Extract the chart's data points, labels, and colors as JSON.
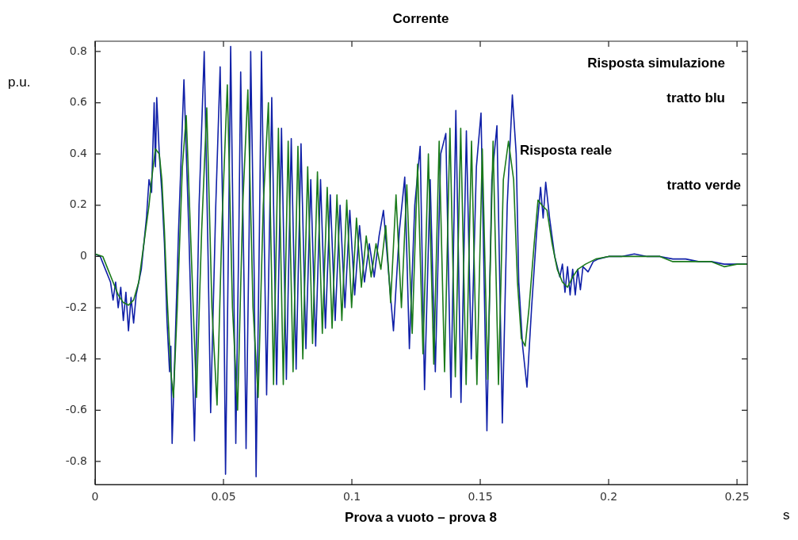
{
  "chart_data": {
    "type": "line",
    "title": "Corrente",
    "xlabel": "Prova a vuoto – prova 8",
    "ylabel": "p.u.",
    "annotations": [
      "Risposta simulazione",
      "tratto blu",
      "Risposta reale",
      "tratto verde",
      "s"
    ],
    "xlim": [
      0,
      0.254
    ],
    "xticks": [
      0,
      0.05,
      0.1,
      0.15,
      0.2,
      0.25
    ],
    "ylim": [
      -0.89,
      0.84
    ],
    "yticks": [
      -0.8,
      -0.6,
      -0.4,
      -0.2,
      0,
      0.2,
      0.4,
      0.6,
      0.8
    ],
    "grid": false,
    "legend": false,
    "marker": "none",
    "line_style": "solid",
    "series": [
      {
        "color": "#1020a8",
        "x": [
          0,
          0.002,
          0.004,
          0.006,
          0.007,
          0.008,
          0.009,
          0.01,
          0.011,
          0.012,
          0.013,
          0.014,
          0.015,
          0.016,
          0.018,
          0.02,
          0.021,
          0.022,
          0.023,
          0.0235,
          0.024,
          0.025,
          0.026,
          0.027,
          0.028,
          0.029,
          0.0295,
          0.03,
          0.031,
          0.0325,
          0.0346,
          0.0365,
          0.0387,
          0.0405,
          0.0425,
          0.044,
          0.045,
          0.047,
          0.0487,
          0.05,
          0.0508,
          0.052,
          0.0528,
          0.054,
          0.0548,
          0.056,
          0.0567,
          0.058,
          0.0588,
          0.06,
          0.0606,
          0.062,
          0.0627,
          0.064,
          0.0648,
          0.066,
          0.0668,
          0.0688,
          0.0707,
          0.0726,
          0.0745,
          0.0764,
          0.0783,
          0.0802,
          0.0821,
          0.084,
          0.0859,
          0.0878,
          0.0897,
          0.0916,
          0.0935,
          0.0954,
          0.0973,
          0.0992,
          0.1011,
          0.103,
          0.1049,
          0.1068,
          0.1087,
          0.1106,
          0.1123,
          0.1142,
          0.1162,
          0.1185,
          0.1206,
          0.1224,
          0.1245,
          0.1266,
          0.1283,
          0.1305,
          0.1325,
          0.1346,
          0.1366,
          0.1386,
          0.1405,
          0.1425,
          0.1446,
          0.1465,
          0.1485,
          0.1503,
          0.1526,
          0.1545,
          0.1565,
          0.1586,
          0.1605,
          0.1625,
          0.164,
          0.165,
          0.1665,
          0.1682,
          0.17,
          0.172,
          0.1735,
          0.1745,
          0.1755,
          0.177,
          0.179,
          0.181,
          0.182,
          0.183,
          0.184,
          0.185,
          0.186,
          0.187,
          0.188,
          0.189,
          0.19,
          0.192,
          0.194,
          0.196,
          0.2,
          0.205,
          0.21,
          0.215,
          0.22,
          0.225,
          0.23,
          0.235,
          0.24,
          0.245,
          0.25,
          0.254
        ],
        "values": [
          0.01,
          0,
          -0.05,
          -0.1,
          -0.17,
          -0.1,
          -0.2,
          -0.12,
          -0.25,
          -0.14,
          -0.29,
          -0.16,
          -0.26,
          -0.15,
          -0.05,
          0.15,
          0.3,
          0.25,
          0.6,
          0.35,
          0.62,
          0.4,
          0.25,
          0.05,
          -0.25,
          -0.45,
          -0.35,
          -0.73,
          -0.4,
          0.1,
          0.69,
          0.1,
          -0.72,
          0.2,
          0.8,
          0,
          -0.61,
          0.2,
          0.74,
          0,
          -0.85,
          0.1,
          0.82,
          -0.1,
          -0.73,
          0.1,
          0.72,
          -0.1,
          -0.75,
          0.1,
          0.8,
          -0.1,
          -0.86,
          0.1,
          0.8,
          0,
          -0.54,
          0.62,
          -0.5,
          0.5,
          -0.48,
          0.46,
          -0.44,
          0.44,
          -0.36,
          0.3,
          -0.35,
          0.3,
          -0.28,
          0.24,
          -0.25,
          0.2,
          -0.2,
          0.18,
          -0.15,
          0.12,
          -0.1,
          0.05,
          -0.08,
          0.08,
          0.18,
          -0.05,
          -0.29,
          0.1,
          0.31,
          -0.36,
          0.2,
          0.43,
          -0.52,
          0.3,
          -0.45,
          0.4,
          0.48,
          -0.55,
          0.57,
          -0.57,
          0.49,
          -0.4,
          0.35,
          0.56,
          -0.68,
          0.3,
          0.51,
          -0.65,
          0.2,
          0.63,
          0.4,
          -0.1,
          -0.35,
          -0.51,
          -0.2,
          0.1,
          0.27,
          0.15,
          0.29,
          0.15,
          0,
          -0.08,
          -0.03,
          -0.14,
          -0.04,
          -0.15,
          -0.05,
          -0.15,
          -0.05,
          -0.13,
          -0.04,
          -0.06,
          -0.02,
          -0.01,
          0,
          0,
          0.01,
          0,
          0,
          -0.01,
          -0.01,
          -0.02,
          -0.02,
          -0.03,
          -0.03,
          -0.03
        ]
      },
      {
        "color": "#1a7a1a",
        "x": [
          0,
          0.003,
          0.005,
          0.007,
          0.009,
          0.011,
          0.013,
          0.015,
          0.017,
          0.019,
          0.021,
          0.022,
          0.0235,
          0.025,
          0.026,
          0.027,
          0.028,
          0.0295,
          0.0305,
          0.032,
          0.034,
          0.0355,
          0.0375,
          0.0395,
          0.0415,
          0.0435,
          0.0455,
          0.0475,
          0.0495,
          0.0515,
          0.0535,
          0.0555,
          0.0575,
          0.0595,
          0.0615,
          0.0635,
          0.0655,
          0.0675,
          0.0695,
          0.0714,
          0.0733,
          0.0752,
          0.0771,
          0.079,
          0.0809,
          0.0828,
          0.0847,
          0.0866,
          0.0885,
          0.0904,
          0.0923,
          0.0942,
          0.0961,
          0.098,
          0.0999,
          0.1018,
          0.1037,
          0.1056,
          0.1075,
          0.1094,
          0.1113,
          0.1132,
          0.1151,
          0.1172,
          0.1193,
          0.1214,
          0.1235,
          0.1256,
          0.1277,
          0.1298,
          0.1319,
          0.134,
          0.1361,
          0.1382,
          0.1403,
          0.1424,
          0.1445,
          0.1466,
          0.1487,
          0.1508,
          0.1529,
          0.155,
          0.1571,
          0.159,
          0.161,
          0.163,
          0.1645,
          0.166,
          0.1675,
          0.169,
          0.171,
          0.1725,
          0.174,
          0.176,
          0.178,
          0.18,
          0.182,
          0.184,
          0.186,
          0.188,
          0.191,
          0.195,
          0.2,
          0.21,
          0.22,
          0.225,
          0.23,
          0.24,
          0.245,
          0.25,
          0.254
        ],
        "values": [
          0.01,
          0,
          -0.05,
          -0.1,
          -0.15,
          -0.18,
          -0.19,
          -0.17,
          -0.1,
          0.05,
          0.2,
          0.3,
          0.42,
          0.4,
          0.3,
          0.1,
          -0.15,
          -0.45,
          -0.55,
          -0.2,
          0.35,
          0.55,
          0,
          -0.55,
          0.1,
          0.58,
          -0.2,
          -0.58,
          0.15,
          0.67,
          -0.2,
          -0.6,
          0.2,
          0.65,
          -0.2,
          -0.55,
          0.2,
          0.6,
          -0.5,
          0.5,
          -0.5,
          0.45,
          -0.45,
          0.43,
          -0.4,
          0.35,
          -0.34,
          0.33,
          -0.3,
          0.27,
          -0.28,
          0.24,
          -0.25,
          0.22,
          -0.2,
          0.15,
          -0.12,
          0.08,
          -0.08,
          0.05,
          -0.05,
          0.12,
          -0.18,
          0.24,
          -0.2,
          0.28,
          -0.3,
          0.36,
          -0.38,
          0.4,
          -0.42,
          0.45,
          -0.45,
          0.5,
          -0.47,
          0.5,
          -0.5,
          0.45,
          -0.5,
          0.42,
          -0.48,
          0.45,
          -0.5,
          0.3,
          0.45,
          0.3,
          -0.1,
          -0.32,
          -0.35,
          -0.2,
          0.05,
          0.22,
          0.2,
          0.18,
          0.05,
          -0.05,
          -0.1,
          -0.12,
          -0.08,
          -0.05,
          -0.03,
          -0.01,
          0,
          0,
          0,
          -0.02,
          -0.02,
          -0.02,
          -0.04,
          -0.03,
          -0.03
        ]
      }
    ]
  }
}
